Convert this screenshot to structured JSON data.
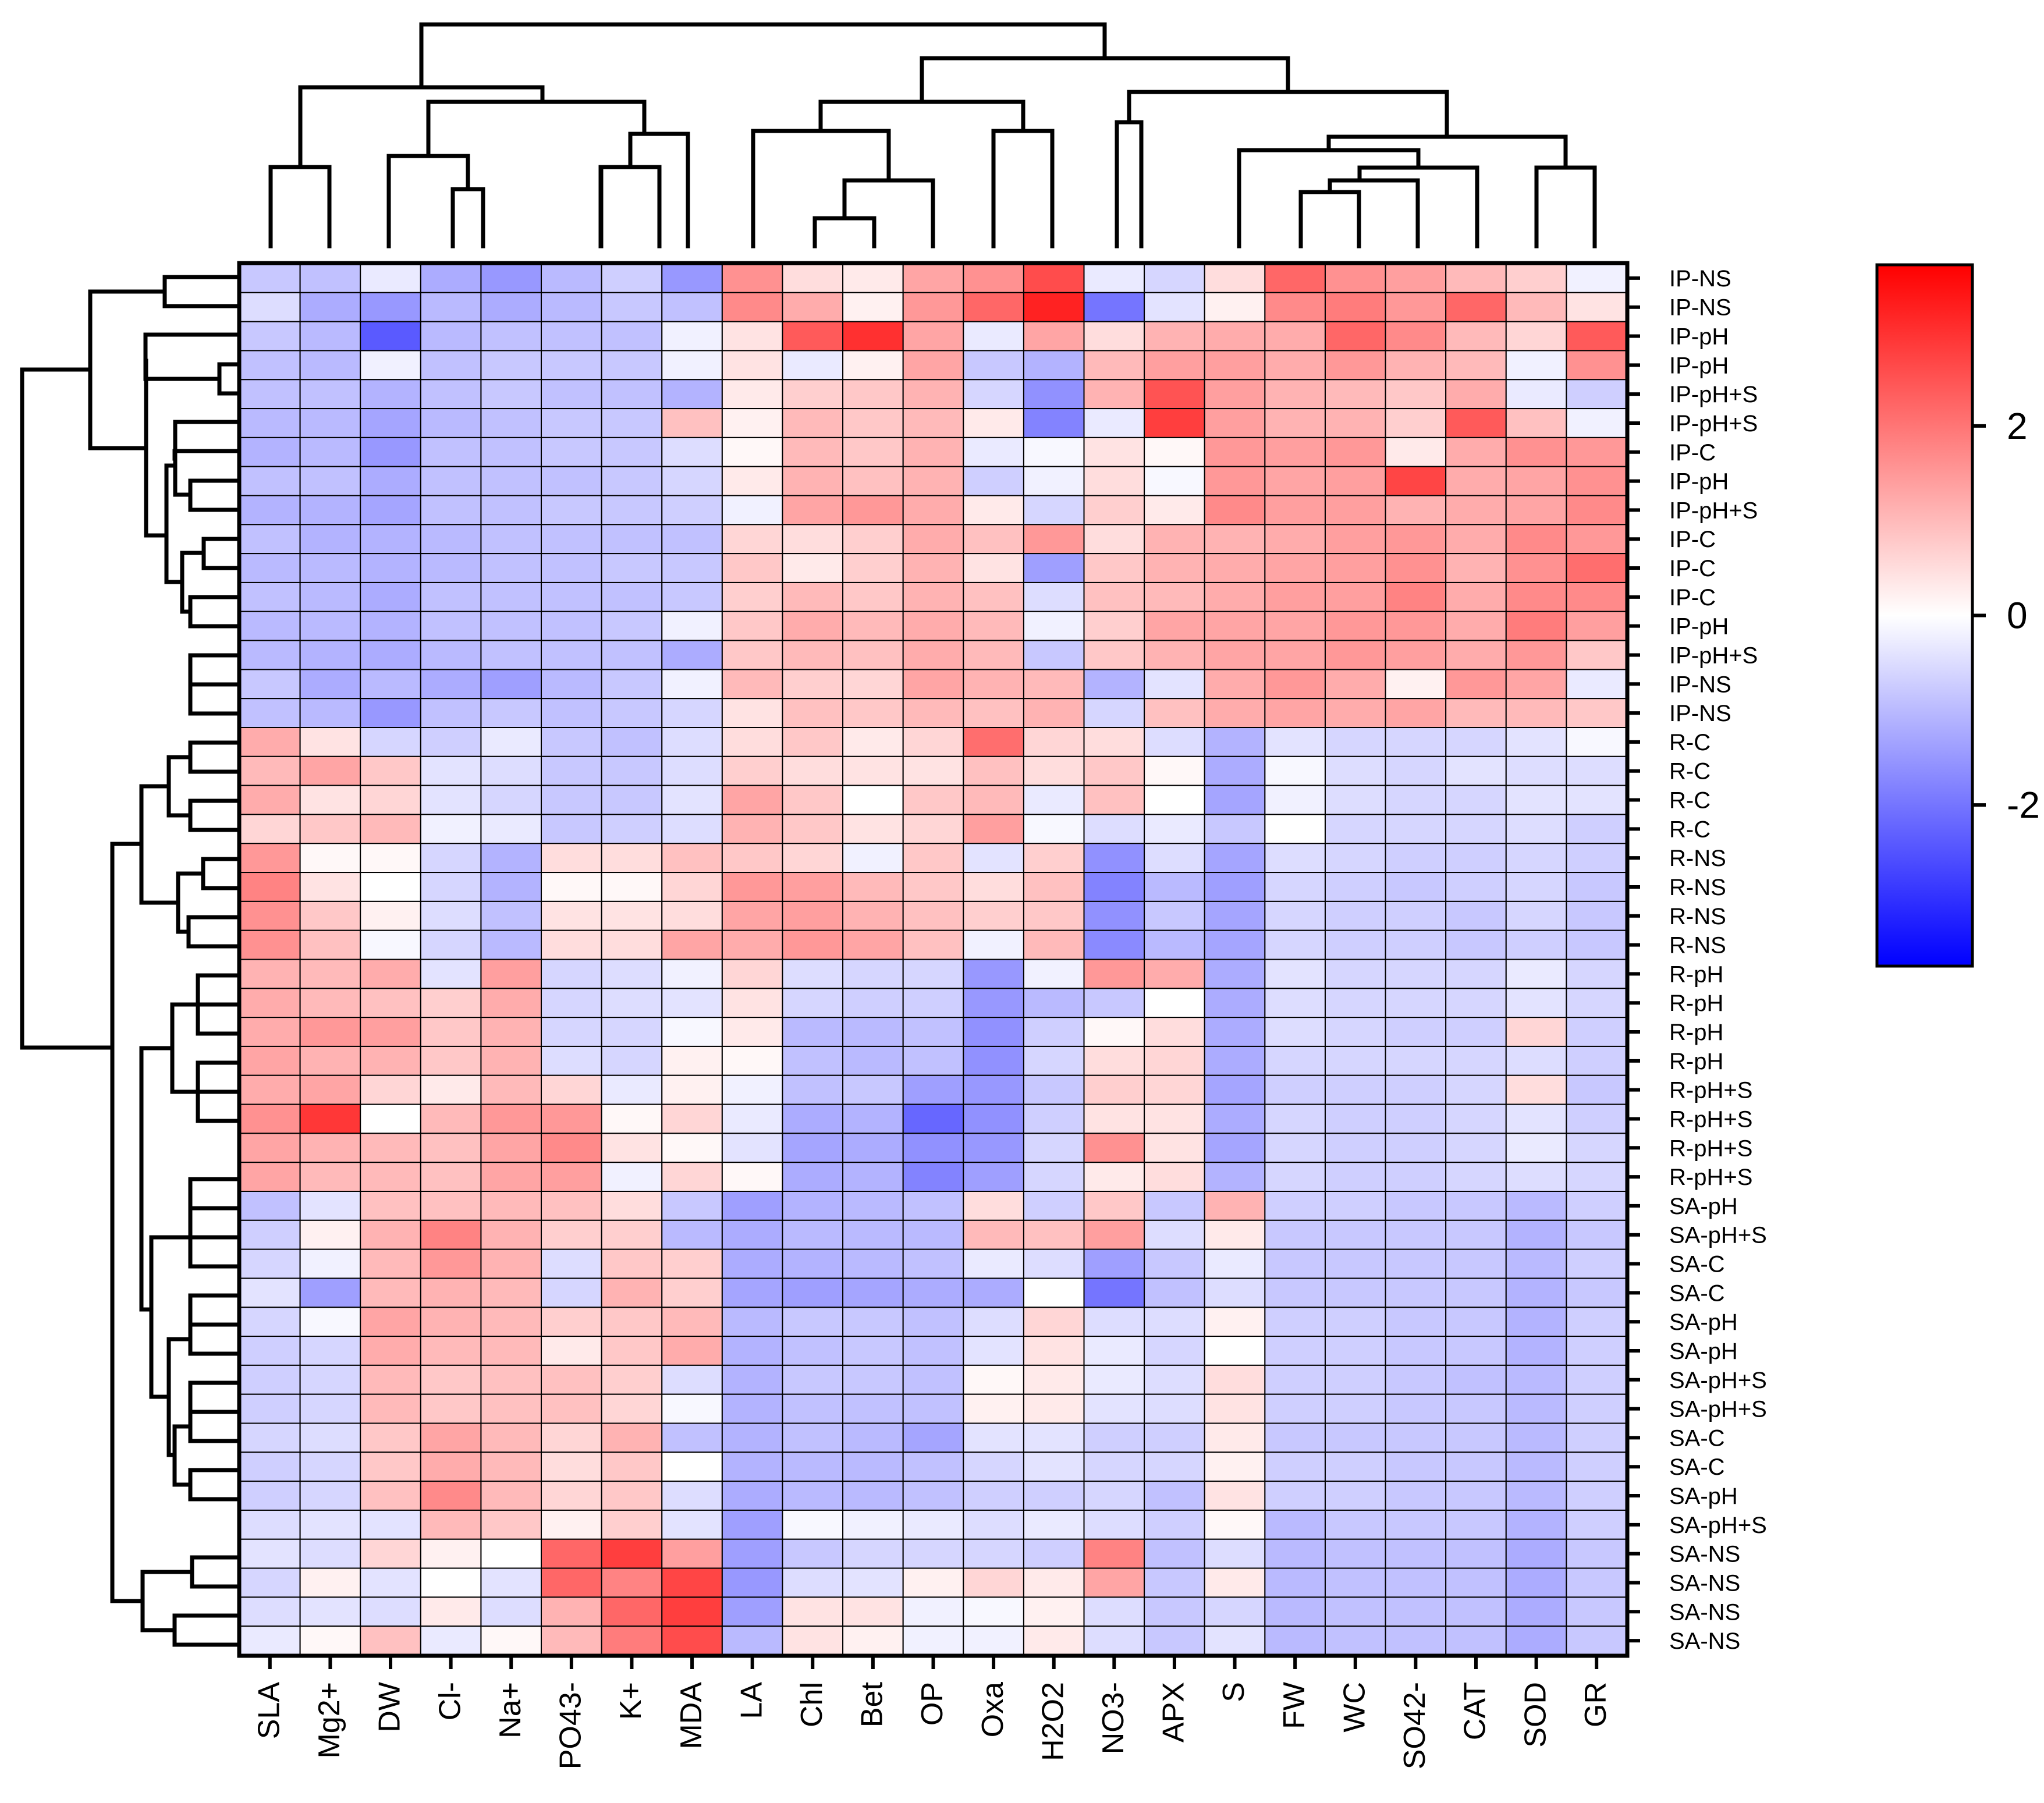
{
  "chart_data": {
    "type": "heatmap",
    "title": "",
    "columns": [
      "SLA",
      "Mg2+",
      "DW",
      "Cl-",
      "Na+",
      "PO43-",
      "K+",
      "MDA",
      "LA",
      "Chl",
      "Bet",
      "OP",
      "Oxa",
      "H2O2",
      "NO3-",
      "APX",
      "S",
      "FW",
      "WC",
      "SO42-",
      "CAT",
      "SOD",
      "GR"
    ],
    "rows": [
      "IP-NS",
      "IP-NS",
      "IP-pH",
      "IP-pH",
      "IP-pH+S",
      "IP-pH+S",
      "IP-C",
      "IP-pH",
      "IP-pH+S",
      "IP-C",
      "IP-C",
      "IP-C",
      "IP-pH",
      "IP-pH+S",
      "IP-NS",
      "IP-NS",
      "R-C",
      "R-C",
      "R-C",
      "R-C",
      "R-NS",
      "R-NS",
      "R-NS",
      "R-NS",
      "R-pH",
      "R-pH",
      "R-pH",
      "R-pH",
      "R-pH+S",
      "R-pH+S",
      "R-pH+S",
      "R-pH+S",
      "SA-pH",
      "SA-pH+S",
      "SA-C",
      "SA-C",
      "SA-pH",
      "SA-pH",
      "SA-pH+S",
      "SA-pH+S",
      "SA-C",
      "SA-C",
      "SA-pH",
      "SA-pH+S",
      "SA-NS",
      "SA-NS",
      "SA-NS",
      "SA-NS"
    ],
    "values": [
      [
        -0.8,
        -0.9,
        -0.3,
        -1.2,
        -1.5,
        -1.0,
        -0.7,
        -1.5,
        1.6,
        0.5,
        0.3,
        1.3,
        1.6,
        2.6,
        -0.3,
        -0.6,
        0.5,
        2.2,
        1.6,
        1.4,
        1.0,
        0.7,
        -0.2
      ],
      [
        -0.5,
        -1.2,
        -1.5,
        -1.0,
        -1.2,
        -1.0,
        -0.8,
        -0.9,
        1.7,
        1.2,
        0.2,
        1.5,
        2.2,
        3.2,
        -2.0,
        -0.4,
        0.2,
        1.7,
        1.9,
        1.5,
        2.2,
        1.0,
        0.4
      ],
      [
        -0.8,
        -1.0,
        -2.4,
        -1.0,
        -0.9,
        -0.9,
        -0.9,
        -0.2,
        0.4,
        2.4,
        3.0,
        1.3,
        -0.3,
        1.3,
        0.5,
        1.1,
        1.2,
        1.2,
        2.2,
        1.7,
        1.0,
        0.6,
        2.4
      ],
      [
        -0.9,
        -1.0,
        -0.2,
        -0.9,
        -0.8,
        -0.8,
        -0.8,
        -0.2,
        0.4,
        -0.3,
        0.2,
        1.3,
        -0.8,
        -1.1,
        1.0,
        1.4,
        1.4,
        1.2,
        1.5,
        1.1,
        1.0,
        -0.2,
        1.6
      ],
      [
        -0.9,
        -0.9,
        -1.1,
        -0.9,
        -0.8,
        -0.9,
        -0.9,
        -1.1,
        0.3,
        0.7,
        0.8,
        1.1,
        -0.6,
        -1.6,
        1.1,
        2.5,
        1.4,
        1.1,
        1.0,
        0.8,
        1.2,
        -0.3,
        -0.7
      ],
      [
        -1.0,
        -1.0,
        -1.3,
        -1.0,
        -0.9,
        -0.8,
        -0.8,
        0.9,
        0.2,
        1.0,
        0.8,
        1.0,
        0.3,
        -1.8,
        -0.3,
        2.8,
        1.4,
        1.1,
        1.1,
        0.7,
        2.4,
        0.9,
        -0.2
      ],
      [
        -1.1,
        -1.0,
        -1.5,
        -0.9,
        -0.9,
        -0.8,
        -0.8,
        -0.5,
        0.1,
        1.0,
        0.8,
        1.1,
        -0.3,
        -0.1,
        0.4,
        0.1,
        1.5,
        1.4,
        1.5,
        0.3,
        1.2,
        1.6,
        1.5
      ],
      [
        -0.9,
        -0.9,
        -1.2,
        -0.9,
        -0.9,
        -0.9,
        -0.8,
        -0.6,
        0.3,
        1.1,
        0.9,
        1.1,
        -0.7,
        -0.2,
        0.5,
        -0.1,
        1.5,
        1.3,
        1.4,
        2.7,
        1.2,
        1.3,
        1.6
      ],
      [
        -1.1,
        -1.1,
        -1.3,
        -0.9,
        -0.9,
        -0.8,
        -0.8,
        -0.7,
        -0.2,
        1.3,
        1.5,
        1.2,
        0.3,
        -0.6,
        0.7,
        0.3,
        1.7,
        1.4,
        1.4,
        1.1,
        1.2,
        1.3,
        1.7
      ],
      [
        -0.9,
        -1.1,
        -1.1,
        -1.0,
        -0.9,
        -0.9,
        -0.9,
        -0.9,
        0.6,
        0.5,
        0.7,
        1.2,
        0.9,
        1.5,
        0.5,
        1.1,
        1.1,
        1.2,
        1.4,
        1.5,
        1.2,
        1.7,
        1.5
      ],
      [
        -1.0,
        -1.0,
        -1.1,
        -1.0,
        -0.9,
        -0.9,
        -0.8,
        -0.8,
        0.8,
        0.3,
        0.7,
        1.1,
        0.4,
        -1.4,
        0.8,
        1.1,
        1.2,
        1.3,
        1.4,
        1.6,
        1.1,
        1.6,
        2.1
      ],
      [
        -0.9,
        -1.0,
        -1.2,
        -0.9,
        -0.9,
        -0.9,
        -0.9,
        -0.8,
        0.7,
        1.0,
        0.8,
        1.1,
        0.9,
        -0.5,
        0.9,
        1.0,
        1.2,
        1.4,
        1.4,
        1.8,
        1.2,
        1.7,
        1.7
      ],
      [
        -1.0,
        -1.0,
        -1.1,
        -0.9,
        -0.9,
        -0.9,
        -0.8,
        -0.2,
        0.8,
        1.2,
        1.0,
        1.2,
        1.0,
        -0.2,
        0.7,
        1.3,
        1.3,
        1.3,
        1.5,
        1.5,
        1.2,
        1.9,
        1.4
      ],
      [
        -1.0,
        -1.1,
        -1.2,
        -1.0,
        -0.9,
        -0.9,
        -0.9,
        -1.2,
        0.8,
        1.0,
        0.9,
        1.2,
        1.0,
        -0.8,
        0.8,
        1.1,
        1.3,
        1.3,
        1.5,
        1.4,
        1.2,
        1.5,
        0.8
      ],
      [
        -0.8,
        -1.2,
        -1.0,
        -1.2,
        -1.4,
        -1.0,
        -0.8,
        -0.2,
        1.0,
        0.7,
        0.6,
        1.3,
        1.1,
        1.0,
        -1.1,
        -0.4,
        1.2,
        1.5,
        1.2,
        0.2,
        1.5,
        1.3,
        -0.3
      ],
      [
        -0.9,
        -1.0,
        -1.5,
        -0.9,
        -0.8,
        -0.9,
        -0.8,
        -0.6,
        0.4,
        0.9,
        0.8,
        1.0,
        0.9,
        1.1,
        -0.6,
        0.9,
        1.2,
        1.3,
        1.2,
        1.3,
        1.0,
        1.0,
        0.8
      ],
      [
        1.2,
        0.4,
        -0.6,
        -0.7,
        -0.3,
        -0.8,
        -0.9,
        -0.5,
        0.5,
        0.8,
        0.3,
        0.6,
        2.1,
        0.6,
        0.5,
        -0.5,
        -1.1,
        -0.4,
        -0.6,
        -0.6,
        -0.6,
        -0.4,
        -0.1
      ],
      [
        1.0,
        1.3,
        0.8,
        -0.4,
        -0.5,
        -0.8,
        -0.8,
        -0.5,
        0.7,
        0.5,
        0.4,
        0.4,
        0.9,
        0.5,
        0.8,
        0.1,
        -1.2,
        -0.1,
        -0.5,
        -0.6,
        -0.4,
        -0.5,
        -0.5
      ],
      [
        1.2,
        0.4,
        0.6,
        -0.4,
        -0.6,
        -0.8,
        -0.8,
        -0.4,
        1.3,
        0.8,
        0.0,
        0.8,
        1.0,
        -0.3,
        0.9,
        0.0,
        -1.3,
        -0.2,
        -0.5,
        -0.6,
        -0.6,
        -0.4,
        -0.4
      ],
      [
        0.6,
        0.8,
        1.0,
        -0.2,
        -0.3,
        -0.8,
        -0.7,
        -0.5,
        1.1,
        0.8,
        0.4,
        0.6,
        1.4,
        -0.1,
        -0.5,
        -0.3,
        -0.8,
        0.0,
        -0.6,
        -0.6,
        -0.6,
        -0.5,
        -0.7
      ],
      [
        1.5,
        0.1,
        0.1,
        -0.6,
        -1.1,
        0.5,
        0.5,
        0.9,
        0.8,
        0.6,
        -0.2,
        0.8,
        -0.4,
        0.7,
        -1.6,
        -0.5,
        -1.3,
        -0.5,
        -0.6,
        -0.7,
        -0.7,
        -0.6,
        -0.7
      ],
      [
        1.8,
        0.4,
        0.0,
        -0.6,
        -1.1,
        0.1,
        0.1,
        0.6,
        1.5,
        1.4,
        1.0,
        0.8,
        0.5,
        0.9,
        -1.8,
        -1.0,
        -1.4,
        -0.6,
        -0.7,
        -0.8,
        -0.7,
        -0.6,
        -0.8
      ],
      [
        1.6,
        0.8,
        0.2,
        -0.5,
        -0.9,
        0.4,
        0.4,
        0.5,
        1.3,
        1.4,
        1.1,
        0.9,
        0.7,
        0.8,
        -1.6,
        -0.8,
        -1.3,
        -0.6,
        -0.7,
        -0.7,
        -0.8,
        -0.6,
        -0.8
      ],
      [
        1.6,
        0.9,
        -0.1,
        -0.6,
        -1.0,
        0.5,
        0.5,
        1.3,
        1.2,
        1.5,
        1.3,
        0.9,
        -0.2,
        1.0,
        -1.7,
        -1.0,
        -1.3,
        -0.6,
        -0.7,
        -0.7,
        -0.8,
        -0.7,
        -0.8
      ],
      [
        1.1,
        1.0,
        1.2,
        -0.4,
        1.4,
        -0.6,
        -0.5,
        -0.2,
        0.6,
        -0.5,
        -0.6,
        -0.6,
        -1.5,
        -0.2,
        1.5,
        1.2,
        -1.2,
        -0.4,
        -0.6,
        -0.6,
        -0.6,
        -0.3,
        -0.6
      ],
      [
        1.2,
        1.0,
        0.9,
        0.7,
        1.2,
        -0.6,
        -0.5,
        -0.4,
        0.4,
        -0.6,
        -0.7,
        -0.7,
        -1.5,
        -1.0,
        -0.8,
        0.0,
        -1.2,
        -0.5,
        -0.6,
        -0.6,
        -0.6,
        -0.4,
        -0.6
      ],
      [
        1.2,
        1.5,
        1.4,
        0.8,
        1.1,
        -0.6,
        -0.6,
        -0.1,
        0.3,
        -1.0,
        -1.0,
        -0.9,
        -1.6,
        -0.7,
        0.1,
        0.5,
        -1.2,
        -0.5,
        -0.6,
        -0.7,
        -0.7,
        0.6,
        -0.7
      ],
      [
        1.3,
        1.1,
        1.1,
        0.8,
        1.1,
        -0.5,
        -0.6,
        0.2,
        0.1,
        -0.9,
        -1.0,
        -0.9,
        -1.6,
        -0.6,
        0.5,
        0.6,
        -1.2,
        -0.6,
        -0.6,
        -0.6,
        -0.6,
        -0.5,
        -0.7
      ],
      [
        1.2,
        1.3,
        0.6,
        0.3,
        1.0,
        0.6,
        -0.3,
        0.2,
        -0.2,
        -0.9,
        -0.8,
        -1.4,
        -1.5,
        -0.8,
        0.7,
        0.6,
        -1.3,
        -0.7,
        -0.7,
        -0.7,
        -0.6,
        0.5,
        -0.8
      ],
      [
        1.6,
        2.9,
        0.0,
        1.0,
        1.5,
        1.5,
        0.1,
        0.6,
        -0.3,
        -1.2,
        -1.1,
        -2.2,
        -1.6,
        -0.7,
        0.4,
        0.4,
        -1.2,
        -0.6,
        -0.7,
        -0.7,
        -0.6,
        -0.4,
        -0.7
      ],
      [
        1.3,
        1.1,
        1.0,
        0.9,
        1.3,
        1.7,
        0.4,
        0.1,
        -0.4,
        -1.3,
        -1.2,
        -1.6,
        -1.5,
        -0.6,
        1.6,
        0.4,
        -1.3,
        -0.6,
        -0.7,
        -0.7,
        -0.6,
        -0.3,
        -0.6
      ],
      [
        1.3,
        1.0,
        1.0,
        0.9,
        1.3,
        1.4,
        -0.2,
        0.6,
        0.1,
        -1.2,
        -1.1,
        -1.8,
        -1.4,
        -0.6,
        0.3,
        0.5,
        -1.1,
        -0.6,
        -0.7,
        -0.7,
        -0.6,
        -0.5,
        -0.6
      ],
      [
        -0.9,
        -0.4,
        0.9,
        0.9,
        1.0,
        0.9,
        0.5,
        -0.8,
        -1.4,
        -1.1,
        -1.0,
        -0.9,
        0.5,
        -0.7,
        0.8,
        -0.8,
        1.1,
        -0.7,
        -0.7,
        -0.8,
        -0.8,
        -1.0,
        -0.7
      ],
      [
        -0.7,
        0.2,
        1.1,
        1.8,
        1.1,
        0.7,
        0.7,
        -1.0,
        -1.2,
        -1.0,
        -1.0,
        -1.0,
        1.0,
        0.9,
        1.4,
        -0.5,
        0.3,
        -0.8,
        -0.8,
        -0.8,
        -0.8,
        -1.1,
        -0.8
      ],
      [
        -0.6,
        -0.2,
        1.0,
        1.5,
        1.1,
        -0.5,
        0.8,
        0.7,
        -1.2,
        -1.1,
        -1.0,
        -0.9,
        -0.3,
        -0.5,
        -1.4,
        -0.8,
        -0.3,
        -0.8,
        -0.8,
        -0.8,
        -0.8,
        -1.0,
        -0.7
      ],
      [
        -0.4,
        -1.4,
        1.0,
        1.1,
        1.0,
        -0.6,
        1.1,
        0.7,
        -1.3,
        -1.4,
        -1.3,
        -1.2,
        -1.2,
        0.0,
        -2.0,
        -0.9,
        -0.5,
        -0.8,
        -0.8,
        -0.8,
        -0.8,
        -1.1,
        -0.8
      ],
      [
        -0.6,
        -0.1,
        1.3,
        1.1,
        1.0,
        0.7,
        0.8,
        1.0,
        -1.0,
        -0.8,
        -0.8,
        -0.9,
        -0.5,
        0.6,
        -0.5,
        -0.5,
        0.2,
        -0.7,
        -0.7,
        -0.8,
        -0.8,
        -1.1,
        -0.7
      ],
      [
        -0.7,
        -0.6,
        1.2,
        1.0,
        1.0,
        0.3,
        0.8,
        1.2,
        -1.1,
        -0.9,
        -0.8,
        -0.9,
        -0.4,
        0.4,
        -0.3,
        -0.6,
        0.0,
        -0.7,
        -0.7,
        -0.8,
        -0.8,
        -1.1,
        -0.7
      ],
      [
        -0.7,
        -0.6,
        1.0,
        0.8,
        0.9,
        0.9,
        0.7,
        -0.5,
        -1.1,
        -0.8,
        -0.8,
        -0.9,
        0.1,
        0.3,
        -0.3,
        -0.5,
        0.5,
        -0.7,
        -0.7,
        -0.8,
        -0.9,
        -1.0,
        -0.7
      ],
      [
        -0.7,
        -0.6,
        1.0,
        0.8,
        0.9,
        0.9,
        0.6,
        -0.1,
        -1.1,
        -0.9,
        -0.9,
        -0.9,
        0.2,
        0.3,
        -0.4,
        -0.5,
        0.4,
        -0.7,
        -0.7,
        -0.8,
        -0.8,
        -1.0,
        -0.7
      ],
      [
        -0.6,
        -0.5,
        0.8,
        1.3,
        1.0,
        0.6,
        1.1,
        -0.9,
        -1.1,
        -0.9,
        -1.0,
        -1.3,
        -0.4,
        -0.4,
        -0.7,
        -0.7,
        0.3,
        -0.8,
        -0.8,
        -0.8,
        -0.8,
        -1.0,
        -0.7
      ],
      [
        -0.7,
        -0.6,
        0.8,
        1.2,
        1.0,
        0.5,
        0.8,
        0.0,
        -1.1,
        -1.0,
        -1.0,
        -0.9,
        -0.6,
        -0.4,
        -0.6,
        -0.6,
        0.2,
        -0.7,
        -0.7,
        -0.8,
        -0.8,
        -1.0,
        -0.7
      ],
      [
        -0.7,
        -0.6,
        0.9,
        1.7,
        1.0,
        0.6,
        0.8,
        -0.5,
        -1.2,
        -1.0,
        -1.0,
        -0.9,
        -0.7,
        -0.7,
        -0.6,
        -0.9,
        0.4,
        -0.7,
        -0.7,
        -0.8,
        -0.8,
        -1.0,
        -0.7
      ],
      [
        -0.5,
        -0.4,
        -0.4,
        1.0,
        0.8,
        0.2,
        0.7,
        -0.4,
        -1.4,
        -0.1,
        -0.2,
        -0.3,
        -0.5,
        -0.3,
        -0.5,
        -0.7,
        0.1,
        -1.0,
        -0.8,
        -0.8,
        -0.8,
        -1.1,
        -0.7
      ],
      [
        -0.4,
        -0.5,
        0.6,
        0.2,
        0.0,
        2.2,
        2.8,
        1.4,
        -1.4,
        -0.8,
        -0.6,
        -0.6,
        -0.6,
        -0.7,
        1.8,
        -0.9,
        -0.5,
        -1.0,
        -0.9,
        -0.9,
        -0.9,
        -1.2,
        -0.8
      ],
      [
        -0.6,
        0.2,
        -0.4,
        0.0,
        -0.4,
        2.2,
        1.8,
        2.7,
        -1.5,
        -0.5,
        -0.4,
        0.2,
        0.6,
        0.3,
        1.3,
        -0.8,
        0.3,
        -1.0,
        -0.9,
        -0.9,
        -0.9,
        -1.2,
        -0.8
      ],
      [
        -0.5,
        -0.4,
        -0.5,
        0.3,
        -0.5,
        1.1,
        2.2,
        2.8,
        -1.4,
        0.4,
        0.4,
        -0.2,
        -0.1,
        0.2,
        -0.5,
        -0.8,
        -0.6,
        -1.0,
        -0.9,
        -0.9,
        -0.9,
        -1.2,
        -0.8
      ],
      [
        -0.3,
        0.1,
        0.9,
        -0.3,
        0.1,
        1.0,
        1.9,
        2.6,
        -1.0,
        0.4,
        0.2,
        -0.2,
        -0.2,
        0.3,
        -0.5,
        -0.8,
        -0.4,
        -1.0,
        -0.9,
        -0.9,
        -0.9,
        -1.2,
        -0.8
      ]
    ],
    "colorbar": {
      "min": -3.7,
      "max": 3.7,
      "ticks": [
        2,
        0,
        -2
      ],
      "tick_labels": [
        "2",
        "0",
        "-2"
      ],
      "colors": [
        "#0000ff",
        "#ffffff",
        "#ff0000"
      ]
    },
    "xlabel": "",
    "ylabel": ""
  }
}
